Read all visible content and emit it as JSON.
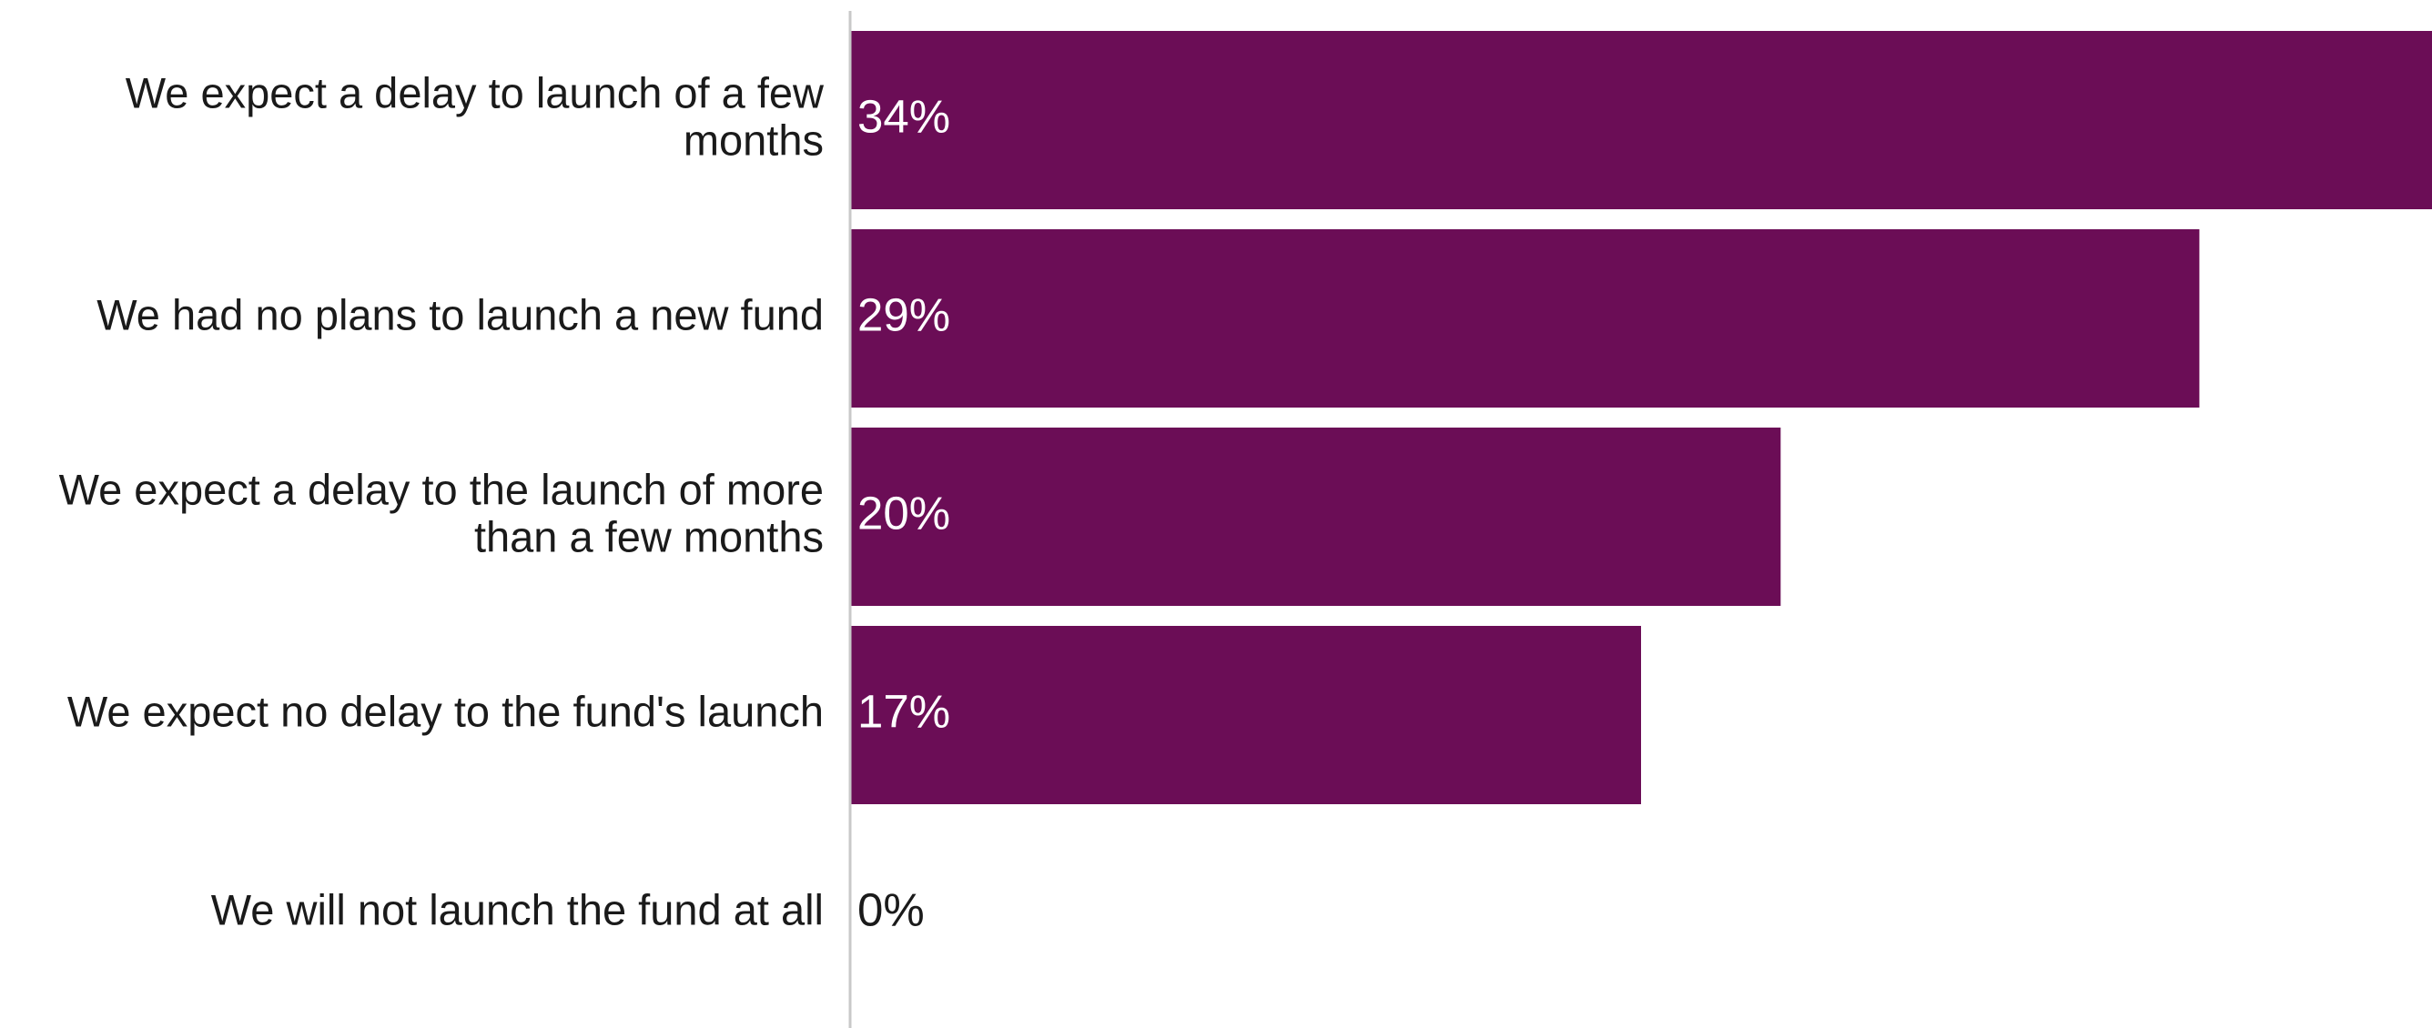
{
  "chart_data": {
    "type": "bar",
    "orientation": "horizontal",
    "categories": [
      "We expect a delay to launch of a few months",
      "We had no plans to launch a new fund",
      "We expect a delay to the launch of more than a few months",
      "We expect no delay to the fund's launch",
      "We will not launch the fund at all"
    ],
    "category_lines": [
      [
        "We expect a delay to launch of a few",
        "months"
      ],
      [
        "We had no plans to launch a new fund"
      ],
      [
        "We expect a delay to the launch of more",
        "than a few months"
      ],
      [
        "We expect no delay to the fund's launch"
      ],
      [
        "We will not launch the fund at all"
      ]
    ],
    "values": [
      34,
      29,
      20,
      17,
      0
    ],
    "data_labels": [
      "34%",
      "29%",
      "20%",
      "17%",
      "0%"
    ],
    "xlim": [
      0,
      34
    ],
    "grid": false,
    "legend": "none",
    "title": "",
    "xlabel": "",
    "ylabel": ""
  },
  "colors": {
    "bar": "#6b0d56",
    "label_on_bar": "#ffffff",
    "label_off_bar": "#1a1a1a",
    "axis": "#c8c8c8"
  }
}
